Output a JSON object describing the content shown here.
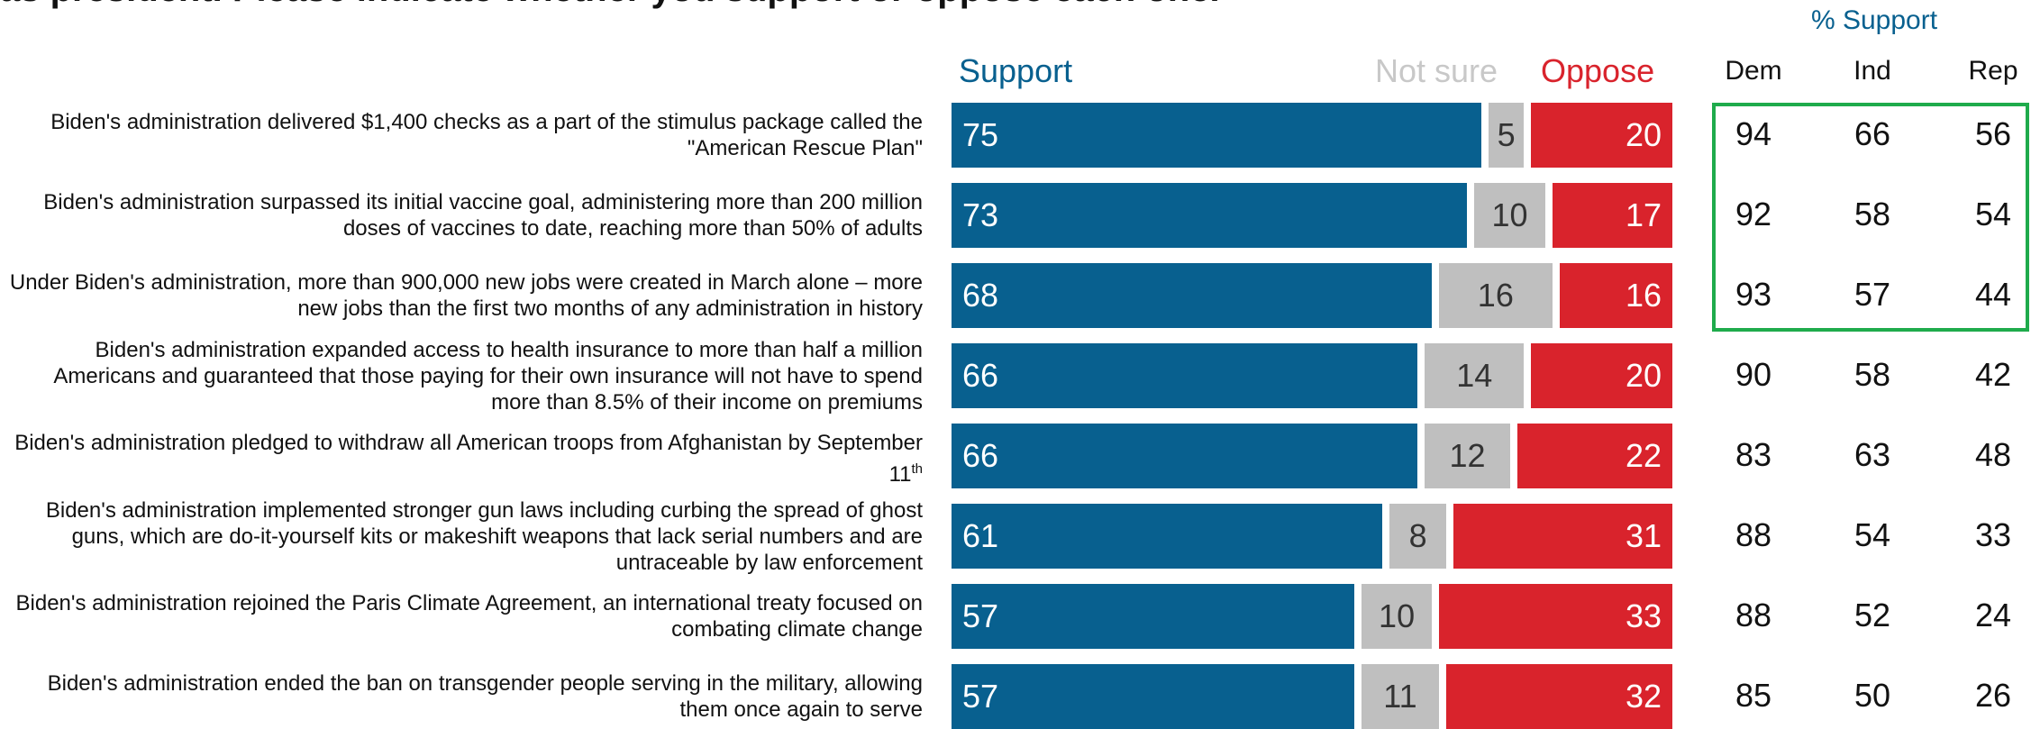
{
  "title_fragment": "as president. Please indicate whether you support or oppose each one.",
  "headers": {
    "support": "Support",
    "not_sure": "Not sure",
    "oppose": "Oppose"
  },
  "colors": {
    "support": "#08608f",
    "not_sure": "#bfbfbf",
    "oppose": "#d9232c",
    "highlight": "#1fab4c"
  },
  "party_header": {
    "title": "% Support",
    "dem": "Dem",
    "ind": "Ind",
    "rep": "Rep"
  },
  "chart_data": {
    "type": "bar",
    "stacked": true,
    "orientation": "horizontal",
    "xlim": [
      0,
      100
    ],
    "grid": false,
    "categories": [
      "Biden's administration delivered $1,400 checks as a part of the stimulus package called the \"American Rescue Plan\"",
      "Biden's administration surpassed its initial vaccine goal, administering more than 200 million doses of vaccines to date, reaching more than 50% of adults",
      "Under Biden's administration, more than 900,000 new jobs were created in March alone – more new jobs than the first two months of any administration in history",
      "Biden's administration expanded access to health insurance to more than half a million Americans and guaranteed that those paying for their own insurance will not have to spend more than 8.5% of their income on premiums",
      "Biden's administration pledged to withdraw all American troops from Afghanistan by September 11th",
      "Biden's administration implemented stronger gun laws including curbing the spread of ghost guns, which are do-it-yourself kits or makeshift weapons that lack serial numbers and are untraceable by law enforcement",
      "Biden's administration rejoined the Paris Climate Agreement, an international treaty focused on combating climate change",
      "Biden's administration ended the ban on transgender people serving in the military, allowing them once again to serve"
    ],
    "series": [
      {
        "name": "Support",
        "values": [
          75,
          73,
          68,
          66,
          66,
          61,
          57,
          57
        ]
      },
      {
        "name": "Not sure",
        "values": [
          5,
          10,
          16,
          14,
          12,
          8,
          10,
          11
        ]
      },
      {
        "name": "Oppose",
        "values": [
          20,
          17,
          16,
          20,
          22,
          31,
          33,
          32
        ]
      }
    ],
    "party_support": {
      "Dem": [
        94,
        92,
        93,
        90,
        83,
        88,
        88,
        85
      ],
      "Ind": [
        66,
        58,
        57,
        58,
        63,
        54,
        52,
        50
      ],
      "Rep": [
        56,
        54,
        44,
        42,
        48,
        33,
        24,
        26
      ]
    }
  }
}
